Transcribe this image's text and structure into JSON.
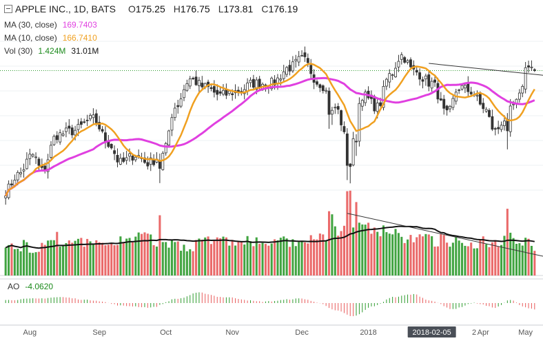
{
  "header": {
    "symbol": "APPLE INC., 1D, BATS",
    "open_label": "O",
    "open": "175.25",
    "high_label": "H",
    "high": "176.75",
    "low_label": "L",
    "low": "173.81",
    "close_label": "C",
    "close": "176.19"
  },
  "indicators": [
    {
      "label": "MA (30, close)",
      "value": "169.7403",
      "color": "#e040e0"
    },
    {
      "label": "MA (10, close)",
      "value": "166.7410",
      "color": "#f0a020"
    },
    {
      "label": "Vol (30)",
      "value": "1.424M",
      "value2": "31.01M",
      "color": "#1b8a1b"
    }
  ],
  "ao": {
    "label": "AO",
    "value": "-4.0620",
    "color": "#1b8a1b"
  },
  "colors": {
    "up": "#2c9a2c",
    "down": "#e85a5a",
    "ma30": "#e040e0",
    "ma10": "#f0a020",
    "vol_ma": "#111111"
  },
  "chart_data": {
    "type": "candlestick",
    "x_tick_labels": [
      "Aug",
      "Sep",
      "Oct",
      "Nov",
      "Dec",
      "2018",
      "2018-02-05",
      "2",
      "Apr",
      "May"
    ],
    "ohlc_anchors": [
      [
        0,
        146
      ],
      [
        4,
        150
      ],
      [
        9,
        155
      ],
      [
        12,
        151
      ],
      [
        17,
        160
      ],
      [
        22,
        161
      ],
      [
        29,
        164
      ],
      [
        34,
        158
      ],
      [
        38,
        153
      ],
      [
        43,
        155
      ],
      [
        47,
        153
      ],
      [
        52,
        155
      ],
      [
        56,
        167
      ],
      [
        61,
        174
      ],
      [
        66,
        172
      ],
      [
        71,
        170
      ],
      [
        77,
        171
      ],
      [
        82,
        173
      ],
      [
        88,
        173
      ],
      [
        94,
        177
      ],
      [
        98,
        179
      ],
      [
        104,
        173
      ],
      [
        109,
        167
      ],
      [
        114,
        156
      ],
      [
        118,
        170
      ],
      [
        123,
        167
      ],
      [
        127,
        175
      ],
      [
        131,
        180
      ],
      [
        135,
        176
      ],
      [
        141,
        173
      ],
      [
        146,
        165
      ],
      [
        150,
        172
      ],
      [
        154,
        171
      ],
      [
        158,
        167
      ],
      [
        162,
        161
      ],
      [
        165,
        164
      ],
      [
        169,
        168
      ],
      [
        173,
        178
      ],
      [
        175,
        176.19
      ]
    ],
    "vol_anchors": [
      [
        0,
        28
      ],
      [
        6,
        30
      ],
      [
        11,
        27
      ],
      [
        14,
        40
      ],
      [
        21,
        33
      ],
      [
        29,
        30
      ],
      [
        37,
        35
      ],
      [
        45,
        38
      ],
      [
        52,
        34
      ],
      [
        60,
        30
      ],
      [
        67,
        35
      ],
      [
        76,
        34
      ],
      [
        86,
        33
      ],
      [
        98,
        32
      ],
      [
        108,
        42
      ],
      [
        113,
        55
      ],
      [
        119,
        48
      ],
      [
        125,
        44
      ],
      [
        134,
        38
      ],
      [
        139,
        36
      ],
      [
        152,
        34
      ],
      [
        162,
        33
      ],
      [
        167,
        40
      ],
      [
        175,
        31
      ]
    ],
    "ao_anchors": [
      [
        0,
        2
      ],
      [
        10,
        3
      ],
      [
        18,
        4
      ],
      [
        28,
        2
      ],
      [
        40,
        -2
      ],
      [
        48,
        -3
      ],
      [
        57,
        3
      ],
      [
        64,
        7
      ],
      [
        72,
        4
      ],
      [
        85,
        1
      ],
      [
        98,
        3
      ],
      [
        104,
        0
      ],
      [
        109,
        -5
      ],
      [
        115,
        -9
      ],
      [
        122,
        -2
      ],
      [
        128,
        4
      ],
      [
        135,
        6
      ],
      [
        140,
        2
      ],
      [
        148,
        -4
      ],
      [
        155,
        0
      ],
      [
        162,
        -3
      ],
      [
        167,
        2
      ],
      [
        172,
        -3
      ],
      [
        175,
        -4.062
      ]
    ],
    "sharp_days": [
      [
        51,
        0.7
      ],
      [
        107,
        0.8
      ],
      [
        108,
        0.5
      ],
      [
        113,
        1.0
      ],
      [
        114,
        0.9
      ],
      [
        116,
        0.9
      ],
      [
        166,
        1.2
      ]
    ],
    "series": [
      {
        "name": "MA (30, close)",
        "period": 30
      },
      {
        "name": "MA (10, close)",
        "period": 10
      },
      {
        "name": "Vol (30)",
        "period": 30
      }
    ],
    "trend_lines": [
      {
        "pane": "price",
        "from": [
          140,
          178
        ],
        "to": [
          176,
          175
        ]
      },
      {
        "pane": "volume",
        "from": [
          113,
          65
        ],
        "to": [
          176,
          20
        ]
      }
    ],
    "price_range": [
      142,
      187
    ],
    "volume_range": [
      0,
      72
    ],
    "ao_range": [
      -14,
      14
    ],
    "last_close": 176.19,
    "seed": 7
  }
}
